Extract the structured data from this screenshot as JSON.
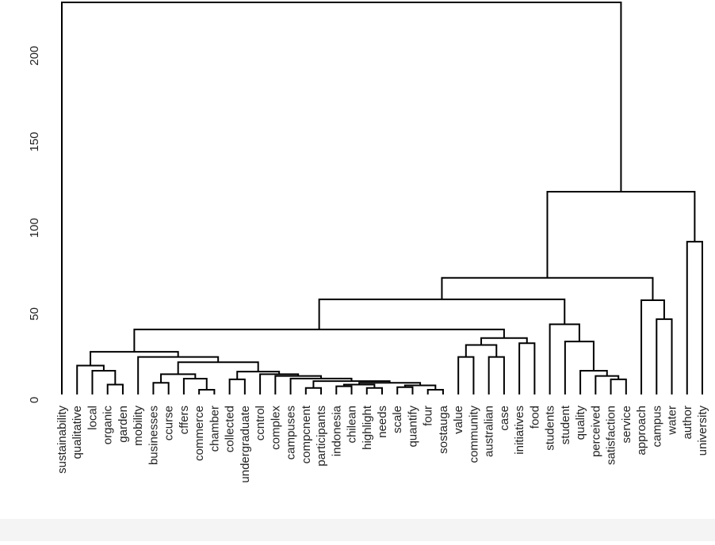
{
  "chart_data": {
    "type": "dendrogram",
    "labels": [
      "sustainability",
      "qualitative",
      "local",
      "organic",
      "garden",
      "mobility",
      "businesses",
      "ccurse",
      "cffers",
      "commerce",
      "chamber",
      "collected",
      "undergraduate",
      "ccntrol",
      "complex",
      "campuses",
      "compcnent",
      "participants",
      "indonesia",
      "chilean",
      "highlight",
      "needs",
      "scale",
      "quantify",
      "four",
      "sostauga",
      "value",
      "community",
      "australian",
      "case",
      "initiatives",
      "food",
      "students",
      "student",
      "quality",
      "perceived",
      "satisfaction",
      "service",
      "approach",
      "campus",
      "water",
      "author",
      "university"
    ],
    "merge": [
      [
        -4,
        -5
      ],
      [
        -3,
        1
      ],
      [
        -2,
        2
      ],
      [
        -10,
        -11
      ],
      [
        -9,
        4
      ],
      [
        -7,
        -8
      ],
      [
        6,
        5
      ],
      [
        -12,
        -13
      ],
      [
        -17,
        -18
      ],
      [
        -19,
        -20
      ],
      [
        -21,
        -22
      ],
      [
        10,
        11
      ],
      [
        -23,
        -24
      ],
      [
        -25,
        -26
      ],
      [
        13,
        14
      ],
      [
        12,
        15
      ],
      [
        9,
        16
      ],
      [
        -16,
        17
      ],
      [
        -15,
        18
      ],
      [
        -14,
        19
      ],
      [
        8,
        20
      ],
      [
        7,
        21
      ],
      [
        -6,
        22
      ],
      [
        3,
        23
      ],
      [
        -27,
        -28
      ],
      [
        -29,
        -30
      ],
      [
        25,
        26
      ],
      [
        -31,
        -32
      ],
      [
        27,
        28
      ],
      [
        24,
        29
      ],
      [
        -37,
        -38
      ],
      [
        -36,
        31
      ],
      [
        -35,
        32
      ],
      [
        -34,
        33
      ],
      [
        -33,
        34
      ],
      [
        30,
        35
      ],
      [
        -40,
        -41
      ],
      [
        -39,
        37
      ],
      [
        36,
        38
      ],
      [
        -42,
        -43
      ],
      [
        39,
        40
      ],
      [
        -1,
        41
      ]
    ],
    "height": [
      9,
      17,
      20,
      6,
      12.4,
      10,
      15,
      12,
      7,
      8,
      7,
      9,
      7.5,
      6,
      8.5,
      10,
      11,
      12.5,
      14,
      15,
      16.5,
      22,
      25,
      28,
      25,
      25,
      32,
      33,
      36,
      41,
      12,
      14,
      17,
      34,
      44,
      58.5,
      47,
      58,
      71,
      92,
      121,
      231
    ],
    "ylim": [
      0,
      231
    ],
    "yticks": [
      0,
      50,
      100,
      150,
      200
    ]
  }
}
